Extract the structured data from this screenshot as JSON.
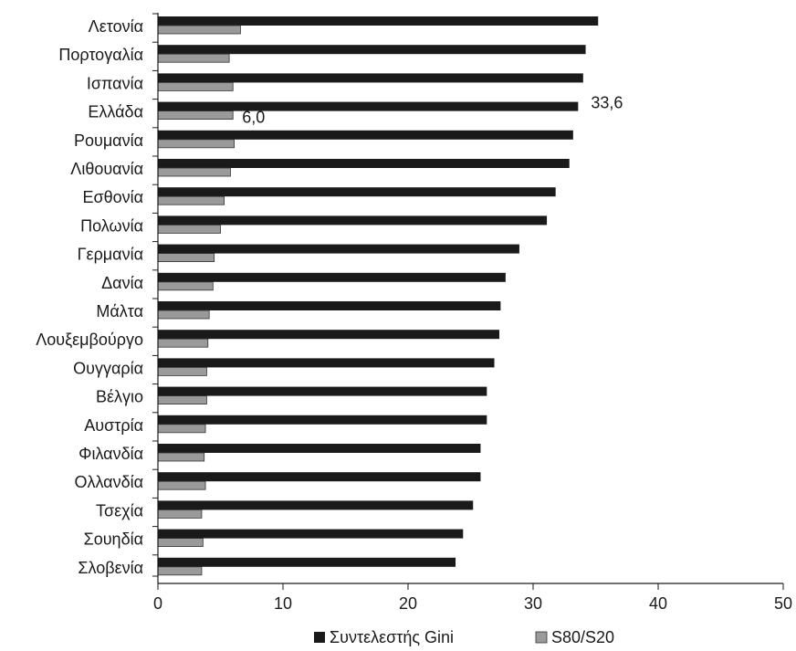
{
  "chart_data": {
    "type": "bar",
    "orientation": "horizontal",
    "categories": [
      "Λετονία",
      "Πορτογαλία",
      "Ισπανία",
      "Ελλάδα",
      "Ρουμανία",
      "Λιθουανία",
      "Εσθονία",
      "Πολωνία",
      "Γερμανία",
      "Δανία",
      "Μάλτα",
      "Λουξεμβούργο",
      "Ουγγαρία",
      "Βέλγιο",
      "Αυστρία",
      "Φιλανδία",
      "Ολλανδία",
      "Τσεχία",
      "Σουηδία",
      "Σλοβενία"
    ],
    "series": [
      {
        "name": "Συντελεστής Gini",
        "color": "#1a1a1a",
        "values": [
          35.2,
          34.2,
          34.0,
          33.6,
          33.2,
          32.9,
          31.8,
          31.1,
          28.9,
          27.8,
          27.4,
          27.3,
          26.9,
          26.3,
          26.3,
          25.8,
          25.8,
          25.2,
          24.4,
          23.8
        ]
      },
      {
        "name": "S80/S20",
        "color": "#9a9a9a",
        "values": [
          6.6,
          5.7,
          6.0,
          6.0,
          6.1,
          5.8,
          5.3,
          5.0,
          4.5,
          4.4,
          4.1,
          4.0,
          3.9,
          3.9,
          3.8,
          3.7,
          3.8,
          3.5,
          3.6,
          3.5
        ]
      }
    ],
    "xlim": [
      0,
      50
    ],
    "xticks": [
      "0",
      "10",
      "20",
      "30",
      "40",
      "50"
    ],
    "annotations": [
      {
        "category": "Ελλάδα",
        "series": "Συντελεστής Gini",
        "text": "33,6"
      },
      {
        "category": "Ελλάδα",
        "series": "S80/S20",
        "text": "6,0"
      }
    ],
    "legend_position": "bottom",
    "grid": false
  }
}
